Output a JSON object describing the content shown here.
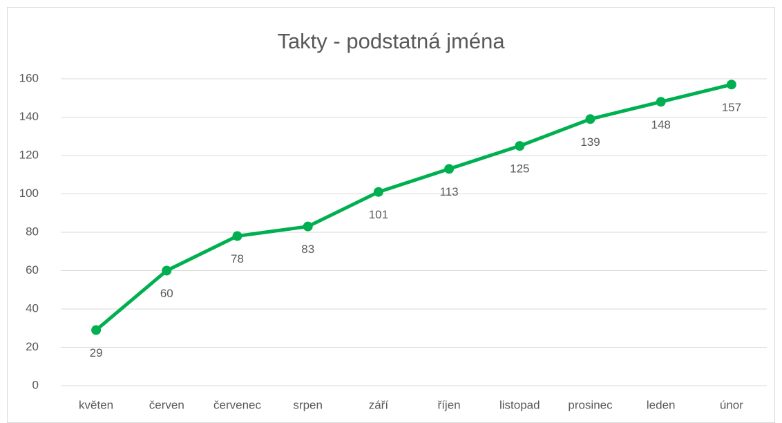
{
  "chart_data": {
    "type": "line",
    "title": "Takty - podstatná jména",
    "categories": [
      "květen",
      "červen",
      "červenec",
      "srpen",
      "září",
      "říjen",
      "listopad",
      "prosinec",
      "leden",
      "únor"
    ],
    "values": [
      29,
      60,
      78,
      83,
      101,
      113,
      125,
      139,
      148,
      157
    ],
    "color": "#00b050",
    "ylim": [
      0,
      160
    ],
    "yticks": [
      0,
      20,
      40,
      60,
      80,
      100,
      120,
      140,
      160
    ],
    "grid": true
  }
}
